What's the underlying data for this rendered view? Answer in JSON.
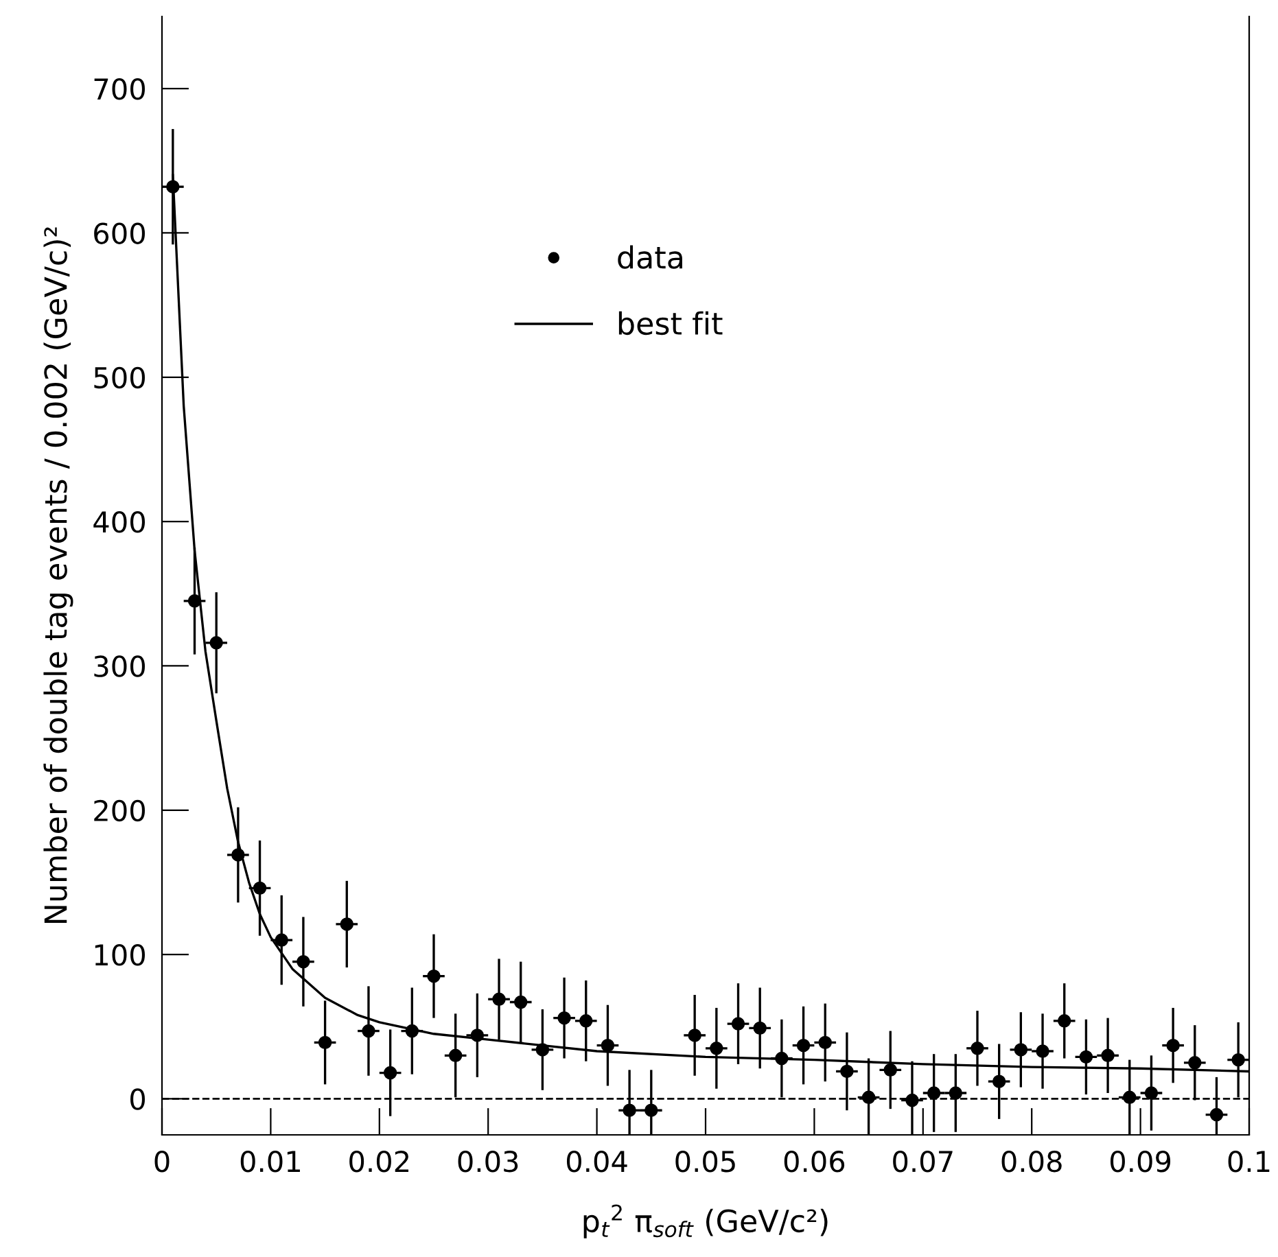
{
  "chart_data": {
    "type": "scatter",
    "xlabel": "p$_{t}$$^{2}$ π$_{soft}$ (GeV/c²)",
    "ylabel": "Number of double tag events / 0.002 (GeV/c)²",
    "xlim": [
      0,
      0.1
    ],
    "ylim": [
      -25,
      750
    ],
    "xticks": [
      {
        "value": 0,
        "label": "0"
      },
      0.01,
      0.02,
      0.03,
      0.04,
      0.05,
      0.06,
      0.07,
      0.08,
      0.09,
      0.1
    ],
    "yticks": [
      0,
      100,
      200,
      300,
      400,
      500,
      600,
      700
    ],
    "grid": false,
    "legend": "top",
    "marker": "circle",
    "ref_lines": [
      {
        "axis": "y",
        "value": 0,
        "color": "#000000",
        "line_style": "dashed"
      }
    ],
    "series": [
      {
        "name": "data",
        "color": "#000000",
        "x": [
          0.001,
          0.003,
          0.005,
          0.007,
          0.009,
          0.011,
          0.013,
          0.015,
          0.017,
          0.019,
          0.021,
          0.023,
          0.025,
          0.027,
          0.029,
          0.031,
          0.033,
          0.035,
          0.037,
          0.039,
          0.041,
          0.043,
          0.045,
          0.047,
          0.049,
          0.051,
          0.053,
          0.055,
          0.057,
          0.059,
          0.061,
          0.063,
          0.065,
          0.067,
          0.069,
          0.071,
          0.073,
          0.075,
          0.077,
          0.079,
          0.081,
          0.083,
          0.085,
          0.087,
          0.089,
          0.091,
          0.093,
          0.095,
          0.097,
          0.099
        ],
        "values": [
          632,
          345,
          316,
          169,
          146,
          110,
          95,
          39,
          121,
          47,
          18,
          47,
          85,
          30,
          44,
          69,
          67,
          34,
          56,
          54,
          37,
          -8,
          -8,
          null,
          44,
          35,
          52,
          49,
          28,
          37,
          39,
          19,
          1,
          20,
          -1,
          4,
          4,
          35,
          12,
          34,
          33,
          54,
          29,
          30,
          1,
          4,
          37,
          25,
          -11,
          27
        ],
        "errors": [
          40,
          37,
          35,
          33,
          33,
          31,
          31,
          29,
          30,
          31,
          30,
          30,
          29,
          29,
          29,
          28,
          28,
          28,
          28,
          28,
          28,
          28,
          28,
          null,
          28,
          28,
          28,
          28,
          27,
          27,
          27,
          27,
          27,
          27,
          27,
          27,
          27,
          26,
          26,
          26,
          26,
          26,
          26,
          26,
          26,
          26,
          26,
          26,
          26,
          26
        ],
        "xerrors": [
          0.001,
          0.001,
          0.001,
          0.001,
          0.001,
          0.001,
          0.001,
          0.001,
          0.001,
          0.001,
          0.001,
          0.001,
          0.001,
          0.001,
          0.001,
          0.001,
          0.001,
          0.001,
          0.001,
          0.001,
          0.001,
          0.001,
          0.001,
          null,
          0.001,
          0.001,
          0.001,
          0.001,
          0.001,
          0.001,
          0.001,
          0.001,
          0.001,
          0.001,
          0.001,
          0.001,
          0.001,
          0.001,
          0.001,
          0.001,
          0.001,
          0.001,
          0.001,
          0.001,
          0.001,
          0.001,
          0.001,
          0.001,
          0.001,
          0.001
        ]
      },
      {
        "name": "best fit",
        "type": "line",
        "color": "#000000",
        "marker": "none",
        "line_style": "solid",
        "x": [
          0.001,
          0.002,
          0.003,
          0.004,
          0.005,
          0.006,
          0.007,
          0.008,
          0.009,
          0.01,
          0.012,
          0.015,
          0.018,
          0.02,
          0.025,
          0.03,
          0.04,
          0.05,
          0.06,
          0.07,
          0.08,
          0.09,
          0.1
        ],
        "values": [
          640,
          480,
          380,
          310,
          262,
          215,
          178,
          150,
          128,
          112,
          90,
          70,
          58,
          53,
          45,
          41,
          33,
          29,
          27,
          24,
          22,
          21,
          19
        ]
      }
    ]
  }
}
